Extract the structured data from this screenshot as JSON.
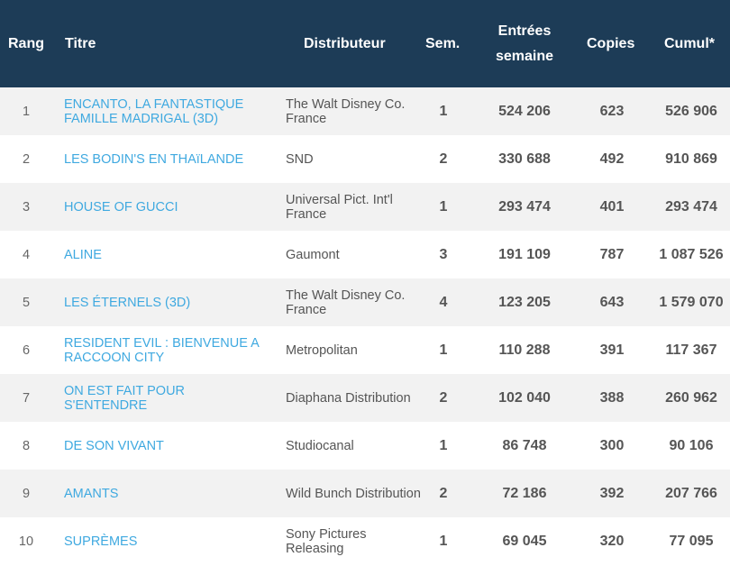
{
  "header": {
    "rang": "Rang",
    "titre": "Titre",
    "distributeur": "Distributeur",
    "sem": "Sem.",
    "entrees": "Entrées semaine",
    "copies": "Copies",
    "cumul": "Cumul*"
  },
  "rows": [
    {
      "rang": "1",
      "titre": "ENCANTO, LA FANTASTIQUE FAMILLE MADRIGAL (3D)",
      "distributeur": "The Walt Disney Co. France",
      "sem": "1",
      "entrees": "524 206",
      "copies": "623",
      "cumul": "526 906"
    },
    {
      "rang": "2",
      "titre": "LES BODIN'S EN THAïLANDE",
      "distributeur": "SND",
      "sem": "2",
      "entrees": "330 688",
      "copies": "492",
      "cumul": "910 869"
    },
    {
      "rang": "3",
      "titre": "HOUSE OF GUCCI",
      "distributeur": "Universal Pict. Int'l France",
      "sem": "1",
      "entrees": "293 474",
      "copies": "401",
      "cumul": "293 474"
    },
    {
      "rang": "4",
      "titre": "ALINE",
      "distributeur": "Gaumont",
      "sem": "3",
      "entrees": "191 109",
      "copies": "787",
      "cumul": "1 087 526"
    },
    {
      "rang": "5",
      "titre": "LES ÉTERNELS (3D)",
      "distributeur": "The Walt Disney Co. France",
      "sem": "4",
      "entrees": "123 205",
      "copies": "643",
      "cumul": "1 579 070"
    },
    {
      "rang": "6",
      "titre": "RESIDENT EVIL : BIENVENUE A RACCOON CITY",
      "distributeur": "Metropolitan",
      "sem": "1",
      "entrees": "110 288",
      "copies": "391",
      "cumul": "117 367"
    },
    {
      "rang": "7",
      "titre": "ON EST FAIT POUR S'ENTENDRE",
      "distributeur": "Diaphana Distribution",
      "sem": "2",
      "entrees": "102 040",
      "copies": "388",
      "cumul": "260 962"
    },
    {
      "rang": "8",
      "titre": "DE SON VIVANT",
      "distributeur": "Studiocanal",
      "sem": "1",
      "entrees": "86 748",
      "copies": "300",
      "cumul": "90 106"
    },
    {
      "rang": "9",
      "titre": "AMANTS",
      "distributeur": "Wild Bunch Distribution",
      "sem": "2",
      "entrees": "72 186",
      "copies": "392",
      "cumul": "207 766"
    },
    {
      "rang": "10",
      "titre": "SUPRÈMES",
      "distributeur": "Sony Pictures Releasing",
      "sem": "1",
      "entrees": "69 045",
      "copies": "320",
      "cumul": "77 095"
    }
  ],
  "colors": {
    "header_bg": "#1d3c57",
    "link": "#3fa9e0",
    "stripe": "#f2f2f2"
  }
}
